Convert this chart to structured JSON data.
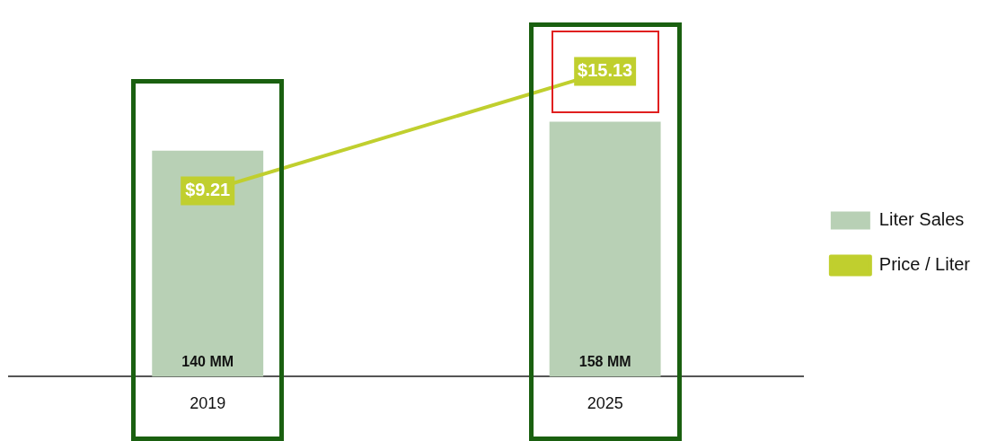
{
  "chart_data": {
    "type": "bar",
    "categories": [
      "2019",
      "2025"
    ],
    "series": [
      {
        "name": "Liter Sales",
        "color": "#b8d0b5",
        "values": [
          140,
          158
        ],
        "value_labels": [
          "140 MM",
          "158 MM"
        ]
      },
      {
        "name": "Price / Liter",
        "type": "line",
        "axis": "y2",
        "color": "#c0cf2e",
        "values": [
          9.21,
          15.13
        ],
        "value_labels": [
          "$9.21",
          "$15.13"
        ]
      }
    ],
    "legend": "right",
    "grid": false,
    "tick_labels": "x"
  }
}
